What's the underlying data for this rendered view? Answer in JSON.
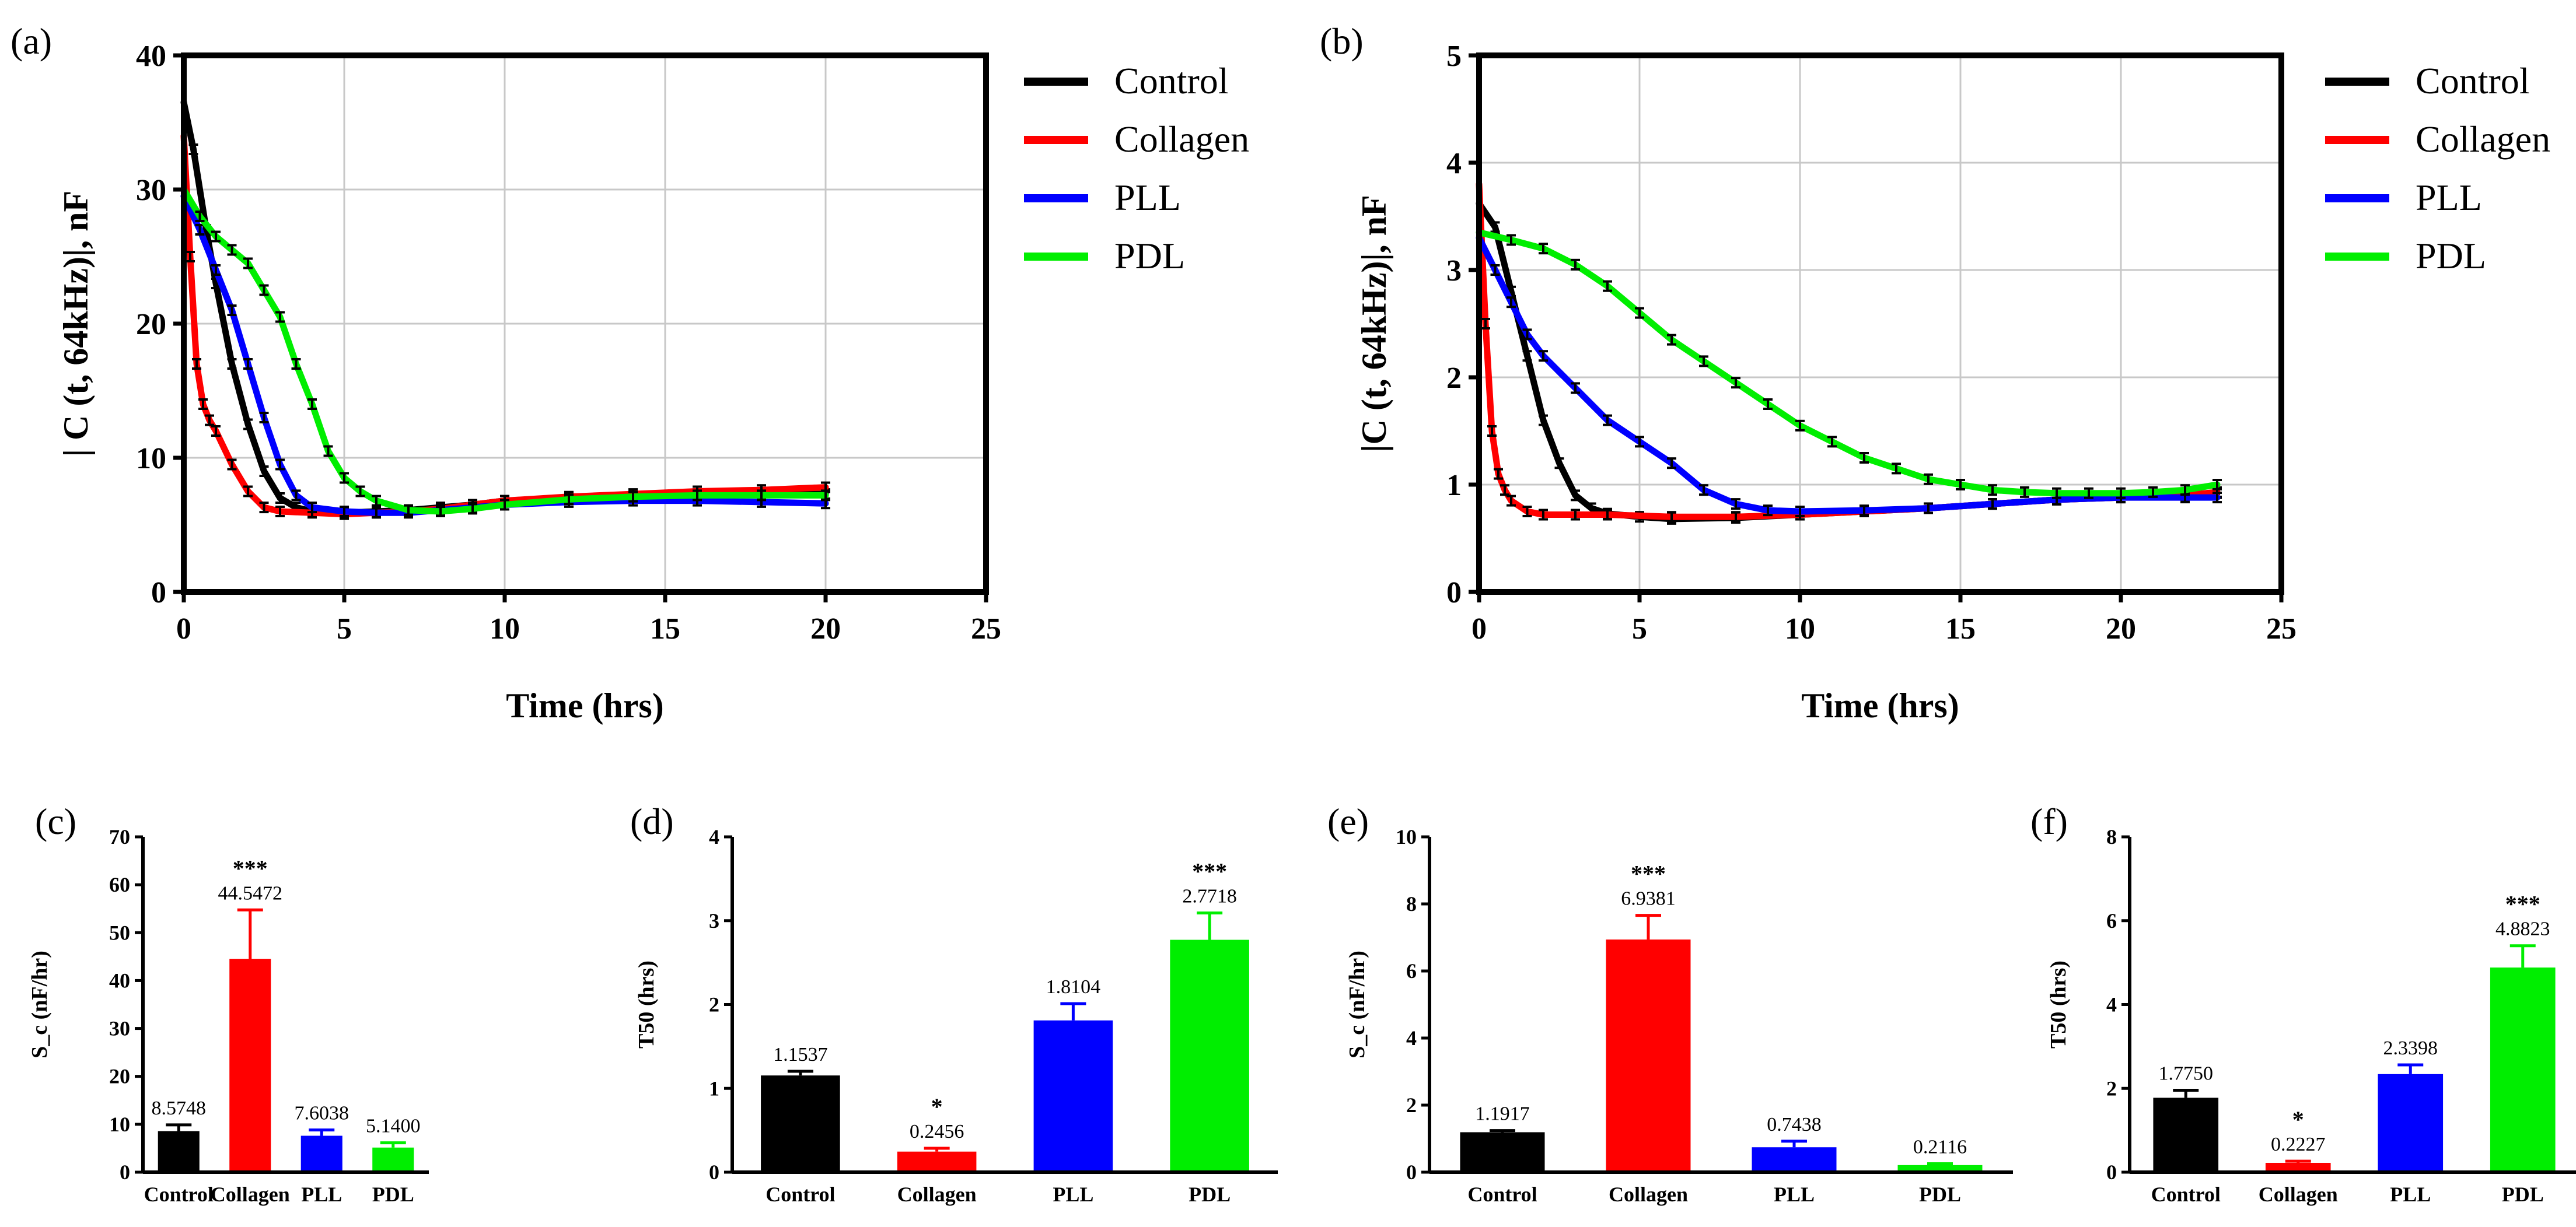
{
  "chart_data": [
    {
      "panel": "(a)",
      "type": "line",
      "xlabel": "Time (hrs)",
      "ylabel": "| C (t, 64kHz)|, nF",
      "xlim": [
        0,
        25
      ],
      "ylim": [
        0,
        40
      ],
      "xticks": [
        0,
        5,
        10,
        15,
        20,
        25
      ],
      "yticks": [
        0,
        10,
        20,
        30,
        40
      ],
      "grid": true,
      "legend": "top-right",
      "series": [
        {
          "name": "Control",
          "color": "#000000",
          "x": [
            0,
            0.3,
            0.7,
            1.0,
            1.5,
            2.0,
            2.5,
            3.0,
            3.5,
            4.0,
            5.0,
            6.0,
            7.0,
            8.0,
            9.0,
            10.0,
            12.0,
            14.0,
            16.0,
            18.0,
            20.0
          ],
          "y": [
            36.5,
            33,
            27,
            23,
            17,
            12.5,
            9,
            7,
            6.3,
            6.0,
            5.9,
            6.0,
            6.1,
            6.3,
            6.5,
            6.8,
            7.0,
            7.2,
            7.3,
            7.3,
            7.3
          ]
        },
        {
          "name": "Collagen",
          "color": "#ff0000",
          "x": [
            0,
            0.2,
            0.4,
            0.6,
            0.8,
            1.0,
            1.5,
            2.0,
            2.5,
            3.0,
            4.0,
            5.0,
            6.0,
            7.0,
            8.0,
            9.0,
            10.0,
            12.0,
            14.0,
            16.0,
            18.0,
            20.0
          ],
          "y": [
            34,
            25,
            17,
            14,
            12.8,
            12,
            9.5,
            7.5,
            6.3,
            6.0,
            5.9,
            5.8,
            5.9,
            6.0,
            6.2,
            6.5,
            6.8,
            7.1,
            7.3,
            7.5,
            7.6,
            7.8
          ]
        },
        {
          "name": "PLL",
          "color": "#0000ff",
          "x": [
            0,
            0.5,
            1.0,
            1.5,
            2.0,
            2.5,
            3.0,
            3.5,
            4.0,
            5.0,
            6.0,
            7.0,
            8.0,
            9.0,
            10.0,
            12.0,
            14.0,
            16.0,
            18.0,
            20.0
          ],
          "y": [
            29.5,
            27,
            24,
            21,
            17,
            13,
            9.5,
            7.2,
            6.3,
            6.0,
            5.9,
            5.9,
            6.1,
            6.3,
            6.5,
            6.7,
            6.8,
            6.8,
            6.7,
            6.6
          ]
        },
        {
          "name": "PDL",
          "color": "#00ee00",
          "x": [
            0,
            0.5,
            1.0,
            1.5,
            2.0,
            2.5,
            3.0,
            3.5,
            4.0,
            4.5,
            5.0,
            5.5,
            6.0,
            7.0,
            8.0,
            9.0,
            10.0,
            12.0,
            14.0,
            16.0,
            18.0,
            20.0
          ],
          "y": [
            30,
            28,
            26.5,
            25.5,
            24.5,
            22.5,
            20.5,
            17,
            14,
            10.5,
            8.5,
            7.5,
            6.8,
            6.1,
            6.0,
            6.2,
            6.5,
            6.9,
            7.1,
            7.2,
            7.2,
            7.2
          ]
        }
      ]
    },
    {
      "panel": "(b)",
      "type": "line",
      "xlabel": "Time (hrs)",
      "ylabel": "|C (t, 64kHz)|, nF",
      "xlim": [
        0,
        25
      ],
      "ylim": [
        0,
        5
      ],
      "xticks": [
        0,
        5,
        10,
        15,
        20,
        25
      ],
      "yticks": [
        0,
        1,
        2,
        3,
        4,
        5
      ],
      "grid": true,
      "legend": "top-right",
      "series": [
        {
          "name": "Control",
          "color": "#000000",
          "x": [
            0,
            0.5,
            1.0,
            1.5,
            2.0,
            2.5,
            3.0,
            3.5,
            4.0,
            5.0,
            6.0,
            8.0,
            10.0,
            12.0,
            14.0,
            16.0,
            18.0,
            20.0,
            22.0,
            23.0
          ],
          "y": [
            3.62,
            3.4,
            2.8,
            2.2,
            1.6,
            1.2,
            0.9,
            0.78,
            0.73,
            0.7,
            0.68,
            0.69,
            0.72,
            0.75,
            0.78,
            0.82,
            0.86,
            0.88,
            0.9,
            0.92
          ]
        },
        {
          "name": "Collagen",
          "color": "#ff0000",
          "x": [
            0,
            0.2,
            0.4,
            0.6,
            0.8,
            1.0,
            1.5,
            2.0,
            3.0,
            4.0,
            6.0,
            8.0,
            10.0,
            12.0,
            14.0,
            16.0,
            18.0,
            20.0,
            22.0,
            23.0
          ],
          "y": [
            3.8,
            2.5,
            1.5,
            1.1,
            0.95,
            0.85,
            0.75,
            0.72,
            0.72,
            0.72,
            0.7,
            0.7,
            0.72,
            0.75,
            0.78,
            0.82,
            0.86,
            0.88,
            0.9,
            0.93
          ]
        },
        {
          "name": "PLL",
          "color": "#0000ff",
          "x": [
            0,
            0.5,
            1.0,
            1.5,
            2.0,
            3.0,
            4.0,
            5.0,
            6.0,
            7.0,
            8.0,
            9.0,
            10.0,
            12.0,
            14.0,
            16.0,
            18.0,
            20.0,
            22.0,
            23.0
          ],
          "y": [
            3.3,
            3.0,
            2.7,
            2.4,
            2.2,
            1.9,
            1.6,
            1.4,
            1.2,
            0.95,
            0.82,
            0.76,
            0.75,
            0.76,
            0.78,
            0.82,
            0.86,
            0.88,
            0.88,
            0.88
          ]
        },
        {
          "name": "PDL",
          "color": "#00ee00",
          "x": [
            0,
            1.0,
            2.0,
            3.0,
            4.0,
            5.0,
            6.0,
            7.0,
            8.0,
            9.0,
            10.0,
            11.0,
            12.0,
            13.0,
            14.0,
            15.0,
            16.0,
            17.0,
            18.0,
            19.0,
            20.0,
            21.0,
            22.0,
            23.0
          ],
          "y": [
            3.35,
            3.28,
            3.2,
            3.05,
            2.85,
            2.6,
            2.35,
            2.15,
            1.95,
            1.75,
            1.55,
            1.4,
            1.25,
            1.15,
            1.05,
            1.0,
            0.95,
            0.93,
            0.92,
            0.92,
            0.92,
            0.93,
            0.95,
            1.0
          ]
        }
      ]
    },
    {
      "panel": "(c)",
      "type": "bar",
      "ylabel": "S_c (nF/hr)",
      "ylim": [
        0,
        70
      ],
      "yticks": [
        0,
        10,
        20,
        30,
        40,
        50,
        60,
        70
      ],
      "categories": [
        "Control",
        "Collagen",
        "PLL",
        "PDL"
      ],
      "values": [
        8.5748,
        44.5472,
        7.6038,
        5.14
      ],
      "labels": [
        "8.5748",
        "44.5472",
        "7.6038",
        "5.1400"
      ],
      "errors": [
        1.3,
        10.2,
        1.2,
        1.0
      ],
      "significance": [
        "",
        "***",
        "",
        ""
      ],
      "colors": [
        "#000000",
        "#ff0000",
        "#0000ff",
        "#00ee00"
      ]
    },
    {
      "panel": "(d)",
      "type": "bar",
      "ylabel": "T50 (hrs)",
      "ylim": [
        0,
        4
      ],
      "yticks": [
        0,
        1,
        2,
        3,
        4
      ],
      "categories": [
        "Control",
        "Collagen",
        "PLL",
        "PDL"
      ],
      "values": [
        1.1537,
        0.2456,
        1.8104,
        2.7718
      ],
      "labels": [
        "1.1537",
        "0.2456",
        "1.8104",
        "2.7718"
      ],
      "errors": [
        0.05,
        0.04,
        0.2,
        0.32
      ],
      "significance": [
        "",
        "*",
        "",
        "***"
      ],
      "colors": [
        "#000000",
        "#ff0000",
        "#0000ff",
        "#00ee00"
      ]
    },
    {
      "panel": "(e)",
      "type": "bar",
      "ylabel": "S_c (nF/hr)",
      "ylim": [
        0,
        10
      ],
      "yticks": [
        0,
        2,
        4,
        6,
        8,
        10
      ],
      "categories": [
        "Control",
        "Collagen",
        "PLL",
        "PDL"
      ],
      "values": [
        1.1917,
        6.9381,
        0.7438,
        0.2116
      ],
      "labels": [
        "1.1917",
        "6.9381",
        "0.7438",
        "0.2116"
      ],
      "errors": [
        0.05,
        0.72,
        0.18,
        0.04
      ],
      "significance": [
        "",
        "***",
        "",
        ""
      ],
      "colors": [
        "#000000",
        "#ff0000",
        "#0000ff",
        "#00ee00"
      ]
    },
    {
      "panel": "(f)",
      "type": "bar",
      "ylabel": "T50 (hrs)",
      "ylim": [
        0,
        8
      ],
      "yticks": [
        0,
        2,
        4,
        6,
        8
      ],
      "categories": [
        "Control",
        "Collagen",
        "PLL",
        "PDL"
      ],
      "values": [
        1.775,
        0.2227,
        2.3398,
        4.8823
      ],
      "labels": [
        "1.7750",
        "0.2227",
        "2.3398",
        "4.8823"
      ],
      "errors": [
        0.18,
        0.04,
        0.22,
        0.52
      ],
      "significance": [
        "",
        "*",
        "",
        "***"
      ],
      "colors": [
        "#000000",
        "#ff0000",
        "#0000ff",
        "#00ee00"
      ]
    }
  ]
}
